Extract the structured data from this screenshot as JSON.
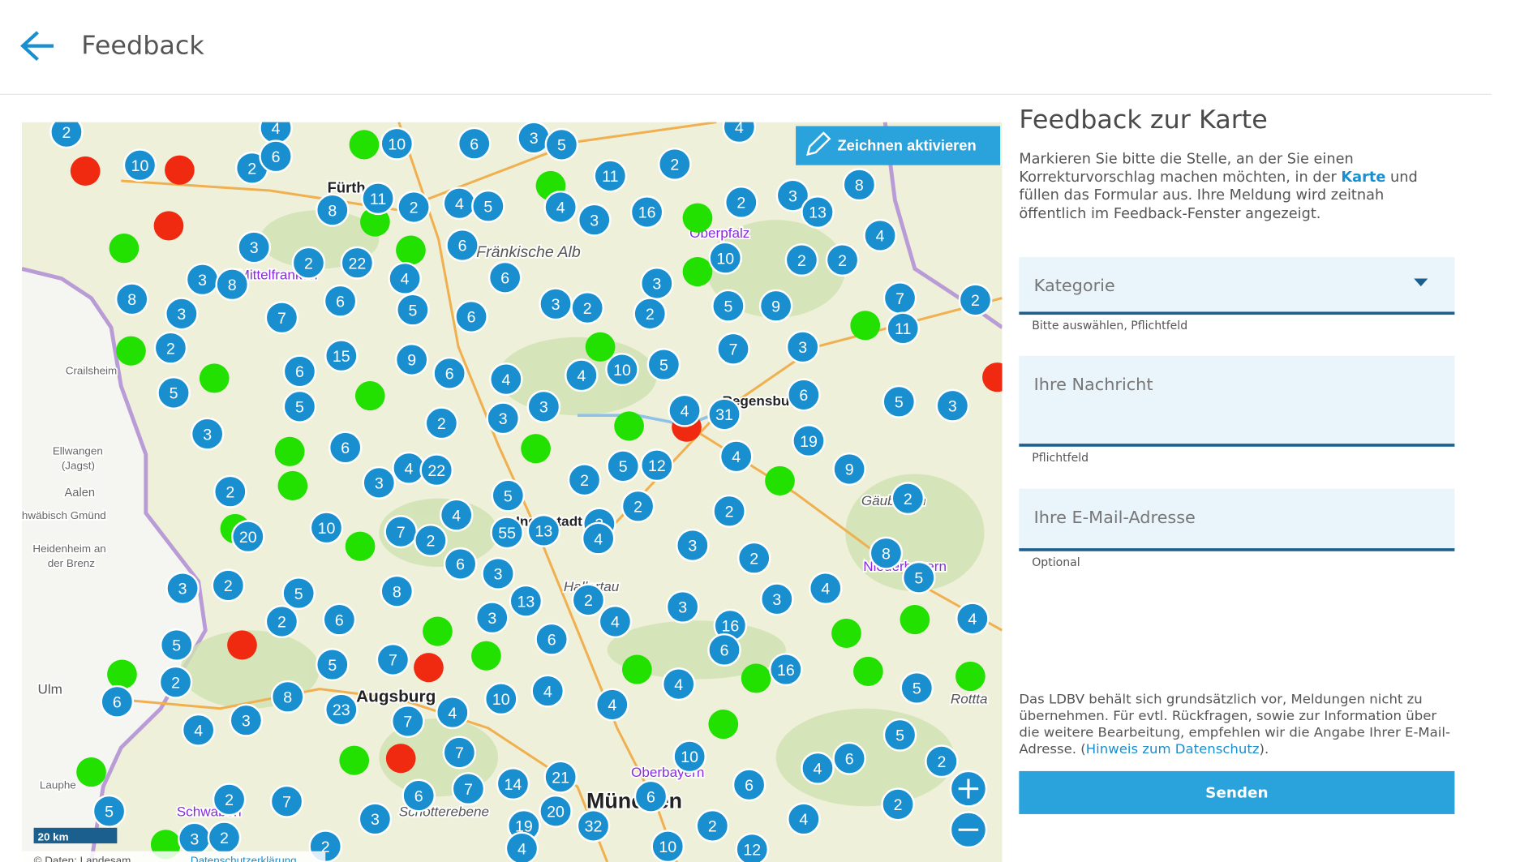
{
  "header": {
    "title": "Feedback"
  },
  "map": {
    "draw_button": "Zeichnen aktivieren",
    "scale": "20 km",
    "attribution": "© Daten: Landesam",
    "privacy": "Datenschutzerklärung",
    "places": [
      "Fürth",
      "Fränkische Alb",
      "Oberpfalz",
      "Mittelfranken",
      "Crailsheim",
      "Regensbu",
      "Ellwangen",
      "(Jagst)",
      "Aalen",
      "Heidenheim an",
      "der Brenz",
      "Ingolstadt",
      "Gäuboden",
      "Niederbayern",
      "Hallertau",
      "Augsburg",
      "Ulm",
      "Oberbayern",
      "Schwaben",
      "Schotterebene",
      "München",
      "Rottta",
      "Lauphe",
      "hwäbisch Gmünd"
    ],
    "clusters": [
      "2",
      "4",
      "10",
      "2",
      "6",
      "10",
      "6",
      "3",
      "5",
      "11",
      "2",
      "4",
      "8",
      "11",
      "8",
      "2",
      "4",
      "5",
      "4",
      "3",
      "16",
      "2",
      "3",
      "13",
      "4",
      "3",
      "6",
      "2",
      "22",
      "4",
      "3",
      "8",
      "6",
      "10",
      "2",
      "2",
      "3",
      "8",
      "3",
      "7",
      "6",
      "5",
      "6",
      "3",
      "2",
      "2",
      "5",
      "9",
      "7",
      "2",
      "2",
      "11",
      "15",
      "9",
      "6",
      "6",
      "4",
      "4",
      "10",
      "5",
      "7",
      "3",
      "5",
      "5",
      "3",
      "3",
      "2",
      "4",
      "31",
      "6",
      "5",
      "3",
      "3",
      "6",
      "19",
      "4",
      "5",
      "12",
      "4",
      "22",
      "3",
      "2",
      "9",
      "2",
      "5",
      "4",
      "2",
      "2",
      "2",
      "10",
      "7",
      "2",
      "55",
      "13",
      "3",
      "4",
      "20",
      "3",
      "2",
      "8",
      "6",
      "3",
      "5",
      "3",
      "2",
      "5",
      "8",
      "13",
      "2",
      "3",
      "3",
      "4",
      "3",
      "2",
      "6",
      "4",
      "16",
      "4",
      "5",
      "6",
      "6",
      "5",
      "7",
      "16",
      "4",
      "2",
      "5",
      "6",
      "8",
      "23",
      "10",
      "4",
      "4",
      "4",
      "3",
      "7",
      "4",
      "5",
      "7",
      "10",
      "6",
      "4",
      "2",
      "21",
      "14",
      "7",
      "6",
      "6",
      "6",
      "2",
      "7",
      "5",
      "20",
      "3",
      "2",
      "4",
      "19",
      "32",
      "2",
      "3",
      "2",
      "2",
      "4",
      "10",
      "12"
    ]
  },
  "form": {
    "title": "Feedback zur Karte",
    "intro": {
      "before": "Markieren Sie bitte die Stelle, an der Sie einen Korrekturvorschlag machen möchten, in der",
      "link": "Karte",
      "after": "und füllen das Formular aus. Ihre Meldung wird zeitnah öffentlich im Feedback-Fenster angezeigt."
    },
    "fields": [
      {
        "label": "Kategorie",
        "hint": "Bitte auswählen,  Pflichtfeld"
      },
      {
        "label": "Ihre Nachricht",
        "hint": "Pflichtfeld"
      },
      {
        "label": "Ihre E-Mail-Adresse",
        "hint": "Optional"
      }
    ],
    "disclaimer": {
      "before": "Das LDBV behält sich grundsätzlich vor, Meldungen nicht zu übernehmen. Für evtl. Rückfragen, sowie zur Information über die weitere Bearbeitung, empfehlen wir die Angabe Ihrer E-Mail-Adresse. (",
      "link": "Hinweis zum Datenschutz",
      "after": ")."
    },
    "submit": "Senden"
  }
}
